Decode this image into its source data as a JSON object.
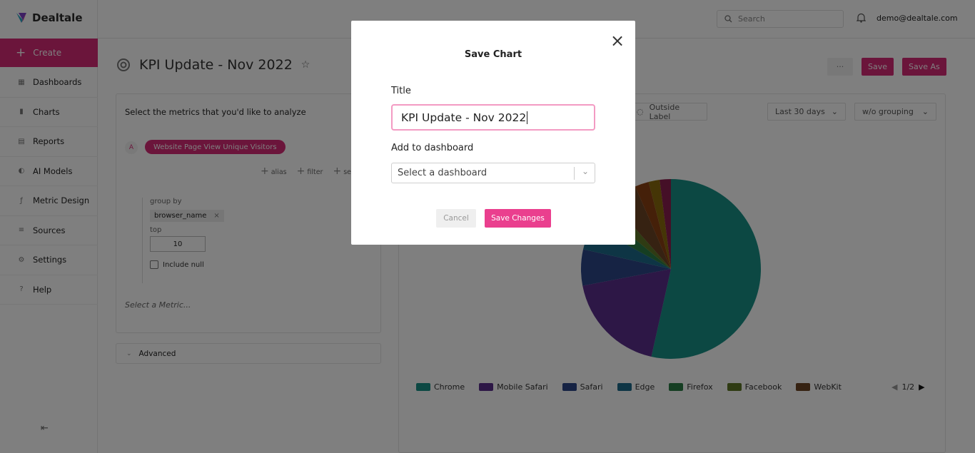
{
  "app": {
    "name": "Dealtale"
  },
  "sidebar": {
    "create_label": "Create",
    "items": [
      {
        "label": "Dashboards",
        "icon": "dashboard-icon"
      },
      {
        "label": "Charts",
        "icon": "bar-chart-icon"
      },
      {
        "label": "Reports",
        "icon": "report-icon"
      },
      {
        "label": "AI Models",
        "icon": "ai-icon"
      },
      {
        "label": "Metric Design",
        "icon": "metric-icon"
      },
      {
        "label": "Sources",
        "icon": "database-icon"
      },
      {
        "label": "Settings",
        "icon": "gear-icon"
      },
      {
        "label": "Help",
        "icon": "help-icon"
      }
    ]
  },
  "topbar": {
    "search_placeholder": "Search",
    "user_email": "demo@dealtale.com"
  },
  "header": {
    "title": "KPI Update - Nov 2022",
    "save_label": "Save",
    "save_as_label": "Save As",
    "more_label": "···"
  },
  "metrics_panel": {
    "prompt": "Select the metrics that you'd like to analyze",
    "metric_letter": "A",
    "metric_name": "Website Page View Unique Visitors",
    "tools": [
      "alias",
      "filter",
      "se"
    ],
    "group_by_label": "group by",
    "group_by_value": "browser_name",
    "top_label": "top",
    "top_value": "10",
    "include_null_label": "Include null",
    "select_metric_placeholder": "Select a Metric...",
    "advanced_label": "Advanced"
  },
  "chart_panel": {
    "label_mode": "Outside Label",
    "date_range": "Last 30 days",
    "grouping": "w/o grouping",
    "pager": "1/2"
  },
  "chart_data": {
    "type": "pie",
    "title": "",
    "series": [
      {
        "name": "Chrome",
        "value": 53.5,
        "color": "#199086"
      },
      {
        "name": "Mobile Safari",
        "value": 18.5,
        "color": "#5b2e8c"
      },
      {
        "name": "Safari",
        "value": 6.5,
        "color": "#2c4688"
      },
      {
        "name": "Edge",
        "value": 4.5,
        "color": "#1d6b8a"
      },
      {
        "name": "Firefox",
        "value": 3.0,
        "color": "#2b7c45"
      },
      {
        "name": "Facebook",
        "value": 2.5,
        "color": "#5f7726"
      },
      {
        "name": "WebKit",
        "value": 5.0,
        "color": "#6d4425"
      },
      {
        "name": "",
        "value": 2.5,
        "color": "#8a4113"
      },
      {
        "name": "",
        "value": 2.0,
        "color": "#8a6a0d"
      },
      {
        "name": "",
        "value": 2.0,
        "color": "#8a1f4e"
      }
    ],
    "legend_visible": [
      "Chrome",
      "Mobile Safari",
      "Safari",
      "Edge",
      "Firefox",
      "Facebook",
      "WebKit"
    ]
  },
  "modal": {
    "title": "Save Chart",
    "close_label": "×",
    "title_label": "Title",
    "title_value": "KPI Update - Nov 2022",
    "dashboard_label": "Add to dashboard",
    "dashboard_placeholder": "Select a dashboard",
    "cancel_label": "Cancel",
    "save_label": "Save Changes"
  },
  "colors": {
    "accent": "#d62a76",
    "modal_save": "#ea3f8e",
    "focus_border": "#f39bc3"
  }
}
